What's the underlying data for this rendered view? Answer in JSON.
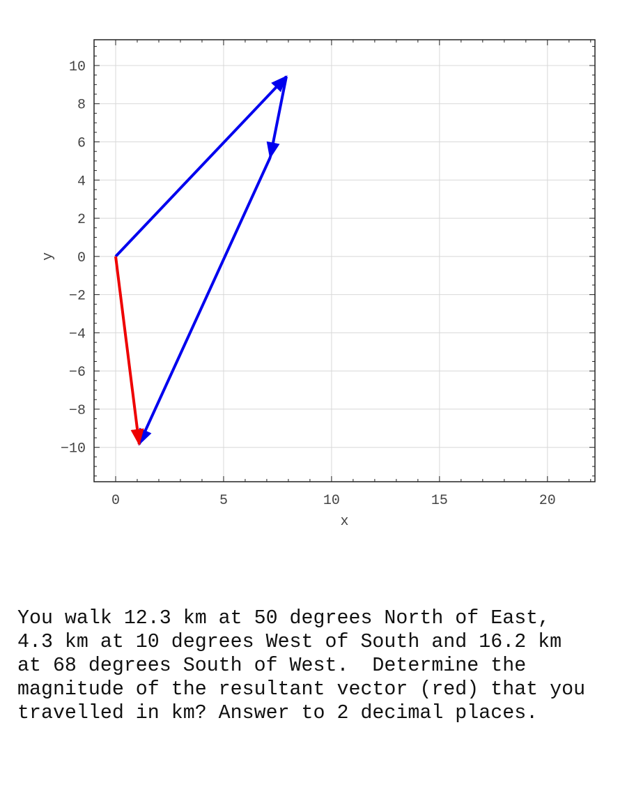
{
  "chart_data": {
    "type": "vector",
    "xlabel": "x",
    "ylabel": "y",
    "xlim": [
      -1,
      22.2
    ],
    "ylim": [
      -11.8,
      11.35
    ],
    "xticks": [
      0,
      5,
      10,
      15,
      20
    ],
    "yticks": [
      -10,
      -8,
      -6,
      -4,
      -2,
      0,
      2,
      4,
      6,
      8,
      10
    ],
    "grid": true,
    "colors": {
      "component": "#0000ee",
      "resultant": "#ee0000"
    },
    "vectors": [
      {
        "role": "component",
        "from": [
          0,
          0
        ],
        "to": [
          7.906,
          9.422
        ],
        "color": "#0000ee"
      },
      {
        "role": "component",
        "from": [
          7.906,
          9.422
        ],
        "to": [
          7.159,
          5.188
        ],
        "color": "#0000ee"
      },
      {
        "role": "component",
        "from": [
          7.159,
          5.188
        ],
        "to": [
          1.09,
          -9.833
        ],
        "color": "#0000ee"
      },
      {
        "role": "resultant",
        "from": [
          0,
          0
        ],
        "to": [
          1.09,
          -9.833
        ],
        "color": "#ee0000"
      }
    ]
  },
  "question": "You walk 12.3 km at 50 degrees North of East,\n4.3 km at 10 degrees West of South and 16.2 km\nat 68 degrees South of West.  Determine the\nmagnitude of the resultant vector (red) that you\ntravelled in km? Answer to 2 decimal places."
}
